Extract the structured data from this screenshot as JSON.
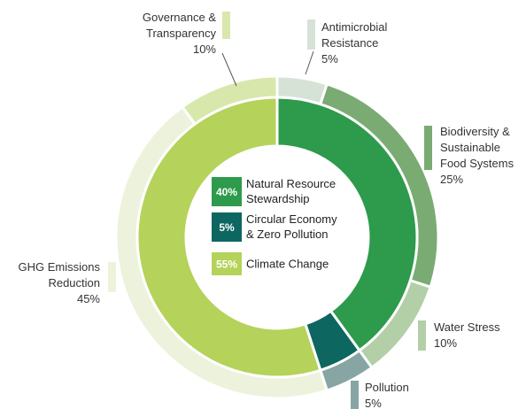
{
  "chart_data": {
    "type": "nested-donut",
    "inner_ring": {
      "slices": [
        {
          "name": "Natural Resource Stewardship",
          "label_lines": [
            "Natural Resource",
            "Stewardship"
          ],
          "value": 40,
          "value_label": "40%",
          "color": "#2e9a4c",
          "badge_text": "#ffffff"
        },
        {
          "name": "Circular Economy & Zero Pollution",
          "label_lines": [
            "Circular Economy",
            "& Zero Pollution"
          ],
          "value": 5,
          "value_label": "5%",
          "color": "#0d6660",
          "badge_text": "#ffffff"
        },
        {
          "name": "Climate Change",
          "label_lines": [
            "Climate Change"
          ],
          "value": 55,
          "value_label": "55%",
          "color": "#b5d25a",
          "badge_text": "#ffffff"
        }
      ]
    },
    "outer_ring": {
      "slices": [
        {
          "name": "Antimicrobial Resistance",
          "label_lines": [
            "Antimicrobial",
            "Resistance"
          ],
          "value": 5,
          "value_label": "5%",
          "color": "#d6e2d6"
        },
        {
          "name": "Biodiversity & Sustainable Food Systems",
          "label_lines": [
            "Biodiversity &",
            "Sustainable",
            "Food Systems"
          ],
          "value": 25,
          "value_label": "25%",
          "color": "#7aab73"
        },
        {
          "name": "Water Stress",
          "label_lines": [
            "Water Stress"
          ],
          "value": 10,
          "value_label": "10%",
          "color": "#b2cfa8"
        },
        {
          "name": "Pollution",
          "label_lines": [
            "Pollution"
          ],
          "value": 5,
          "value_label": "5%",
          "color": "#87a6a3"
        },
        {
          "name": "GHG Emissions Reduction",
          "label_lines": [
            "GHG Emissions",
            "Reduction"
          ],
          "value": 45,
          "value_label": "45%",
          "color": "#ecf2dc"
        },
        {
          "name": "Governance & Transparency",
          "label_lines": [
            "Governance &",
            "Transparency"
          ],
          "value": 10,
          "value_label": "10%",
          "color": "#d8e8ac"
        }
      ]
    }
  }
}
